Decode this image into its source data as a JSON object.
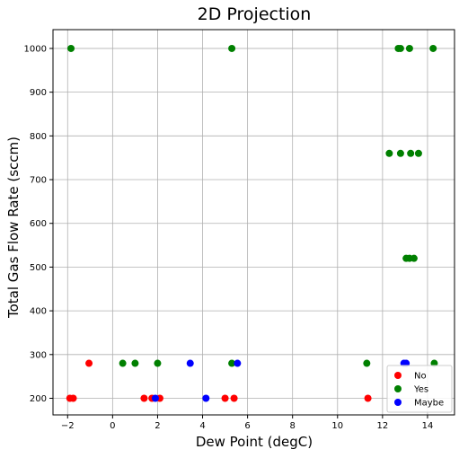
{
  "chart_data": {
    "type": "scatter",
    "title": "2D Projection",
    "xlabel": "Dew Point (degC)",
    "ylabel": "Total Gas Flow Rate (sccm)",
    "xlim": [
      -2.65,
      15.2
    ],
    "ylim": [
      162,
      1043
    ],
    "xticks": [
      -2,
      0,
      2,
      4,
      6,
      8,
      10,
      12,
      14
    ],
    "yticks": [
      200,
      300,
      400,
      500,
      600,
      700,
      800,
      900,
      1000
    ],
    "grid": true,
    "legend_position": "lower right",
    "series": [
      {
        "name": "No",
        "color": "#ff0000",
        "points": [
          {
            "x": -1.05,
            "y": 280
          },
          {
            "x": -1.9,
            "y": 200
          },
          {
            "x": -1.75,
            "y": 200
          },
          {
            "x": 1.4,
            "y": 200
          },
          {
            "x": 1.75,
            "y": 200
          },
          {
            "x": 2.1,
            "y": 200
          },
          {
            "x": 5.0,
            "y": 200
          },
          {
            "x": 5.4,
            "y": 200
          },
          {
            "x": 11.35,
            "y": 200
          }
        ]
      },
      {
        "name": "Yes",
        "color": "#008000",
        "points": [
          {
            "x": -1.85,
            "y": 1000
          },
          {
            "x": 5.3,
            "y": 1000
          },
          {
            "x": 12.7,
            "y": 1000
          },
          {
            "x": 12.8,
            "y": 1000
          },
          {
            "x": 13.2,
            "y": 1000
          },
          {
            "x": 14.25,
            "y": 1000
          },
          {
            "x": 12.3,
            "y": 760
          },
          {
            "x": 12.8,
            "y": 760
          },
          {
            "x": 13.25,
            "y": 760
          },
          {
            "x": 13.6,
            "y": 760
          },
          {
            "x": 13.05,
            "y": 520
          },
          {
            "x": 13.2,
            "y": 520
          },
          {
            "x": 13.4,
            "y": 520
          },
          {
            "x": 0.45,
            "y": 280
          },
          {
            "x": 1.0,
            "y": 280
          },
          {
            "x": 2.0,
            "y": 280
          },
          {
            "x": 5.3,
            "y": 280
          },
          {
            "x": 11.3,
            "y": 280
          },
          {
            "x": 14.3,
            "y": 280
          }
        ]
      },
      {
        "name": "Maybe",
        "color": "#0000ff",
        "points": [
          {
            "x": 1.9,
            "y": 200
          },
          {
            "x": 4.15,
            "y": 200
          },
          {
            "x": 3.45,
            "y": 280
          },
          {
            "x": 5.55,
            "y": 280
          },
          {
            "x": 12.95,
            "y": 280
          },
          {
            "x": 13.05,
            "y": 280
          }
        ]
      }
    ]
  }
}
